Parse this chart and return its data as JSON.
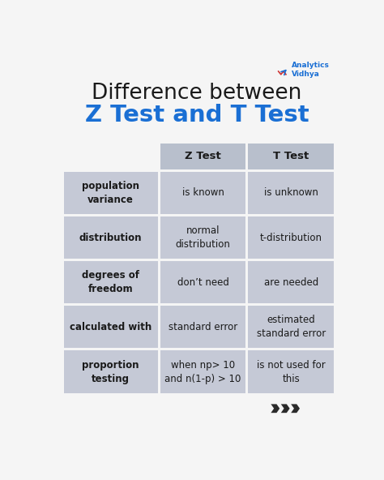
{
  "title_line1": "Difference between",
  "title_line2": "Z Test and T Test",
  "title_line1_color": "#1a1a1a",
  "title_line2_color": "#1a6fd4",
  "bg_color": "#f5f5f5",
  "header_bg": "#b8bfcc",
  "row_bg": "#c5c9d6",
  "gap_color": "#f5f5f5",
  "col_header": [
    "Z Test",
    "T Test"
  ],
  "rows": [
    {
      "label": "population\nvariance",
      "z": "is known",
      "t": "is unknown"
    },
    {
      "label": "distribution",
      "z": "normal\ndistribution",
      "t": "t-distribution"
    },
    {
      "label": "degrees of\nfreedom",
      "z": "don’t need",
      "t": "are needed"
    },
    {
      "label": "calculated with",
      "z": "standard error",
      "t": "estimated\nstandard error"
    },
    {
      "label": "proportion\ntesting",
      "z": "when np> 10\nand n(1-p) > 10",
      "t": "is not used for\nthis"
    }
  ],
  "label_fontsize": 8.5,
  "cell_fontsize": 8.5,
  "header_fontsize": 9.5,
  "title_fontsize1": 19,
  "title_fontsize2": 21,
  "av_fontsize": 6.5,
  "arrow_color": "#2a2a2a",
  "text_color": "#1a1a1a"
}
